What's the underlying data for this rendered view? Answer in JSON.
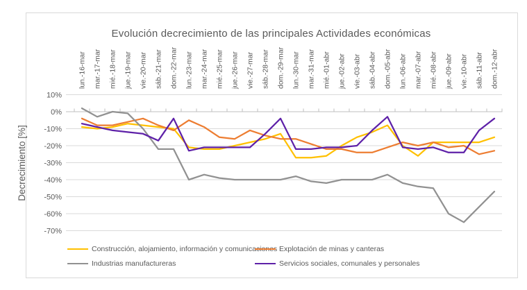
{
  "chart": {
    "frame_border_color": "#d9d9d9",
    "gridline_color": "#d9d9d9",
    "axis_line_color": "#bfbfbf",
    "text_color": "#595959"
  },
  "chart_data": {
    "type": "line",
    "title": "Evolución decrecimiento de las principales Actividades económicas",
    "xlabel": "",
    "ylabel": "Decrecimiento [%]",
    "ylim": [
      -70,
      10
    ],
    "ytick_values": [
      10,
      0,
      -10,
      -20,
      -30,
      -40,
      -50,
      -60,
      -70
    ],
    "ytick_labels": [
      "10%",
      "0%",
      "-10%",
      "-20%",
      "-30%",
      "-40%",
      "-50%",
      "-60%",
      "-70%"
    ],
    "grid": true,
    "legend_position": "bottom",
    "categories": [
      "lun.-16-mar",
      "mar.-17-mar",
      "mié.-18-mar",
      "jue.-19-mar",
      "vie.-20-mar",
      "sáb.-21-mar",
      "dom.-22-mar",
      "lun.-23-mar",
      "mar.-24-mar",
      "mié.-25-mar",
      "jue.-26-mar",
      "vie.-27-mar",
      "sáb.-28-mar",
      "dom.-29-mar",
      "lun.-30-mar",
      "mar.-31-mar",
      "mié.-01-abr",
      "jue.-02-abr",
      "vie.-03-abr",
      "sáb.-04-abr",
      "dom.-05-abr",
      "lun.-06-abr",
      "mar.-07-abr",
      "mié.-08-abr",
      "jue.-09-abr",
      "vie.-10-abr",
      "sáb.-11-abr",
      "dom.-12-abr"
    ],
    "series": [
      {
        "name": "Construcción, alojamiento, información y comunicaciones",
        "color": "#FFC000",
        "values": [
          -9,
          -10,
          -9,
          -7,
          -8,
          -9,
          -10,
          -21,
          -22,
          -22,
          -20,
          -18,
          -16,
          -13,
          -27,
          -27,
          -26,
          -20,
          -15,
          -12,
          -8,
          -20,
          -26,
          -18,
          -18,
          -18,
          -18,
          -15
        ]
      },
      {
        "name": "Explotación de minas y canteras",
        "color": "#ED7D31",
        "values": [
          -4,
          -8,
          -8,
          -6,
          -4,
          -8,
          -11,
          -5,
          -9,
          -15,
          -16,
          -11,
          -14,
          -16,
          -16,
          -19,
          -22,
          -22,
          -24,
          -24,
          -21,
          -18,
          -20,
          -18,
          -21,
          -20,
          -25,
          -23
        ]
      },
      {
        "name": "Industrias manufactureras",
        "color": "#919191",
        "values": [
          2,
          -3,
          0,
          -1,
          -10,
          -22,
          -22,
          -40,
          -37,
          -39,
          -40,
          -40,
          -40,
          -40,
          -38,
          -41,
          -42,
          -40,
          -40,
          -40,
          -37,
          -42,
          -44,
          -45,
          -60,
          -65,
          -56,
          -47
        ]
      },
      {
        "name": "Servicios sociales, comunales y personales",
        "color": "#5E21A8",
        "values": [
          -7,
          -9,
          -11,
          -12,
          -13,
          -17,
          -4,
          -23,
          -21,
          -21,
          -21,
          -21,
          -13,
          -4,
          -22,
          -22,
          -21,
          -21,
          -20,
          -11,
          -3,
          -21,
          -22,
          -21,
          -24,
          -24,
          -11,
          -4
        ]
      }
    ]
  }
}
